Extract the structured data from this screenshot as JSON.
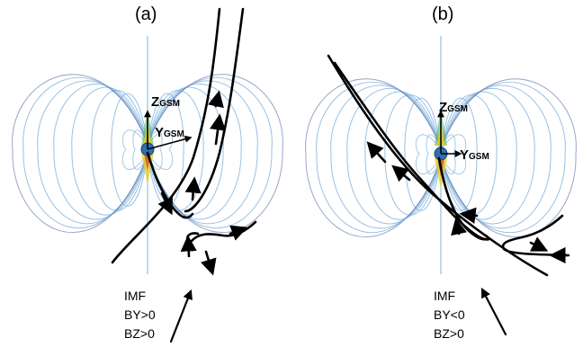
{
  "panels": [
    {
      "label": "(a)",
      "z_label": "Z",
      "z_sub": "GSM",
      "y_label": "Y",
      "y_sub": "GSM",
      "imf_lines": [
        "IMF",
        "BY>0",
        "BZ>0"
      ]
    },
    {
      "label": "(b)",
      "z_label": "Z",
      "z_sub": "GSM",
      "y_label": "Y",
      "y_sub": "GSM",
      "imf_lines": [
        "IMF",
        "BY<0",
        "BZ>0"
      ]
    }
  ],
  "colors": {
    "field_line_blue": "#7fb2dc",
    "field_line_dark": "#4a5a9a",
    "cusp_yellow": "#e8d020",
    "cusp_red": "#d0402a",
    "cusp_green": "#50b060",
    "earth_blue": "#2f6fb0",
    "trace": "#000000"
  }
}
